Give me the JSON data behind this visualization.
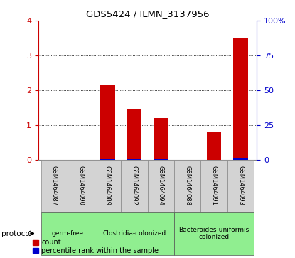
{
  "title": "GDS5424 / ILMN_3137956",
  "samples": [
    "GSM1464087",
    "GSM1464090",
    "GSM1464089",
    "GSM1464092",
    "GSM1464094",
    "GSM1464088",
    "GSM1464091",
    "GSM1464093"
  ],
  "count_values": [
    0.0,
    0.0,
    2.15,
    1.45,
    1.2,
    0.0,
    0.8,
    3.5
  ],
  "percentile_values": [
    0.0,
    0.0,
    0.75,
    0.45,
    0.42,
    0.0,
    0.28,
    1.05
  ],
  "ylim_left": [
    0,
    4
  ],
  "ylim_right": [
    0,
    100
  ],
  "yticks_left": [
    0,
    1,
    2,
    3,
    4
  ],
  "yticks_right": [
    0,
    25,
    50,
    75,
    100
  ],
  "yticklabels_right": [
    "0",
    "25",
    "50",
    "75",
    "100%"
  ],
  "count_color": "#cc0000",
  "percentile_color": "#0000cc",
  "bar_width": 0.55,
  "group_info": [
    {
      "start": 0,
      "end": 1,
      "label": "germ-free"
    },
    {
      "start": 2,
      "end": 4,
      "label": "Clostridia-colonized"
    },
    {
      "start": 5,
      "end": 7,
      "label": "Bacteroides-uniformis\ncolonized"
    }
  ],
  "group_color": "#90ee90",
  "protocol_label": "protocol",
  "legend_count_label": "count",
  "legend_percentile_label": "percentile rank within the sample",
  "tick_bg_color": "#d3d3d3",
  "axis_left_color": "#cc0000",
  "axis_right_color": "#0000cc",
  "fig_bg": "#ffffff"
}
